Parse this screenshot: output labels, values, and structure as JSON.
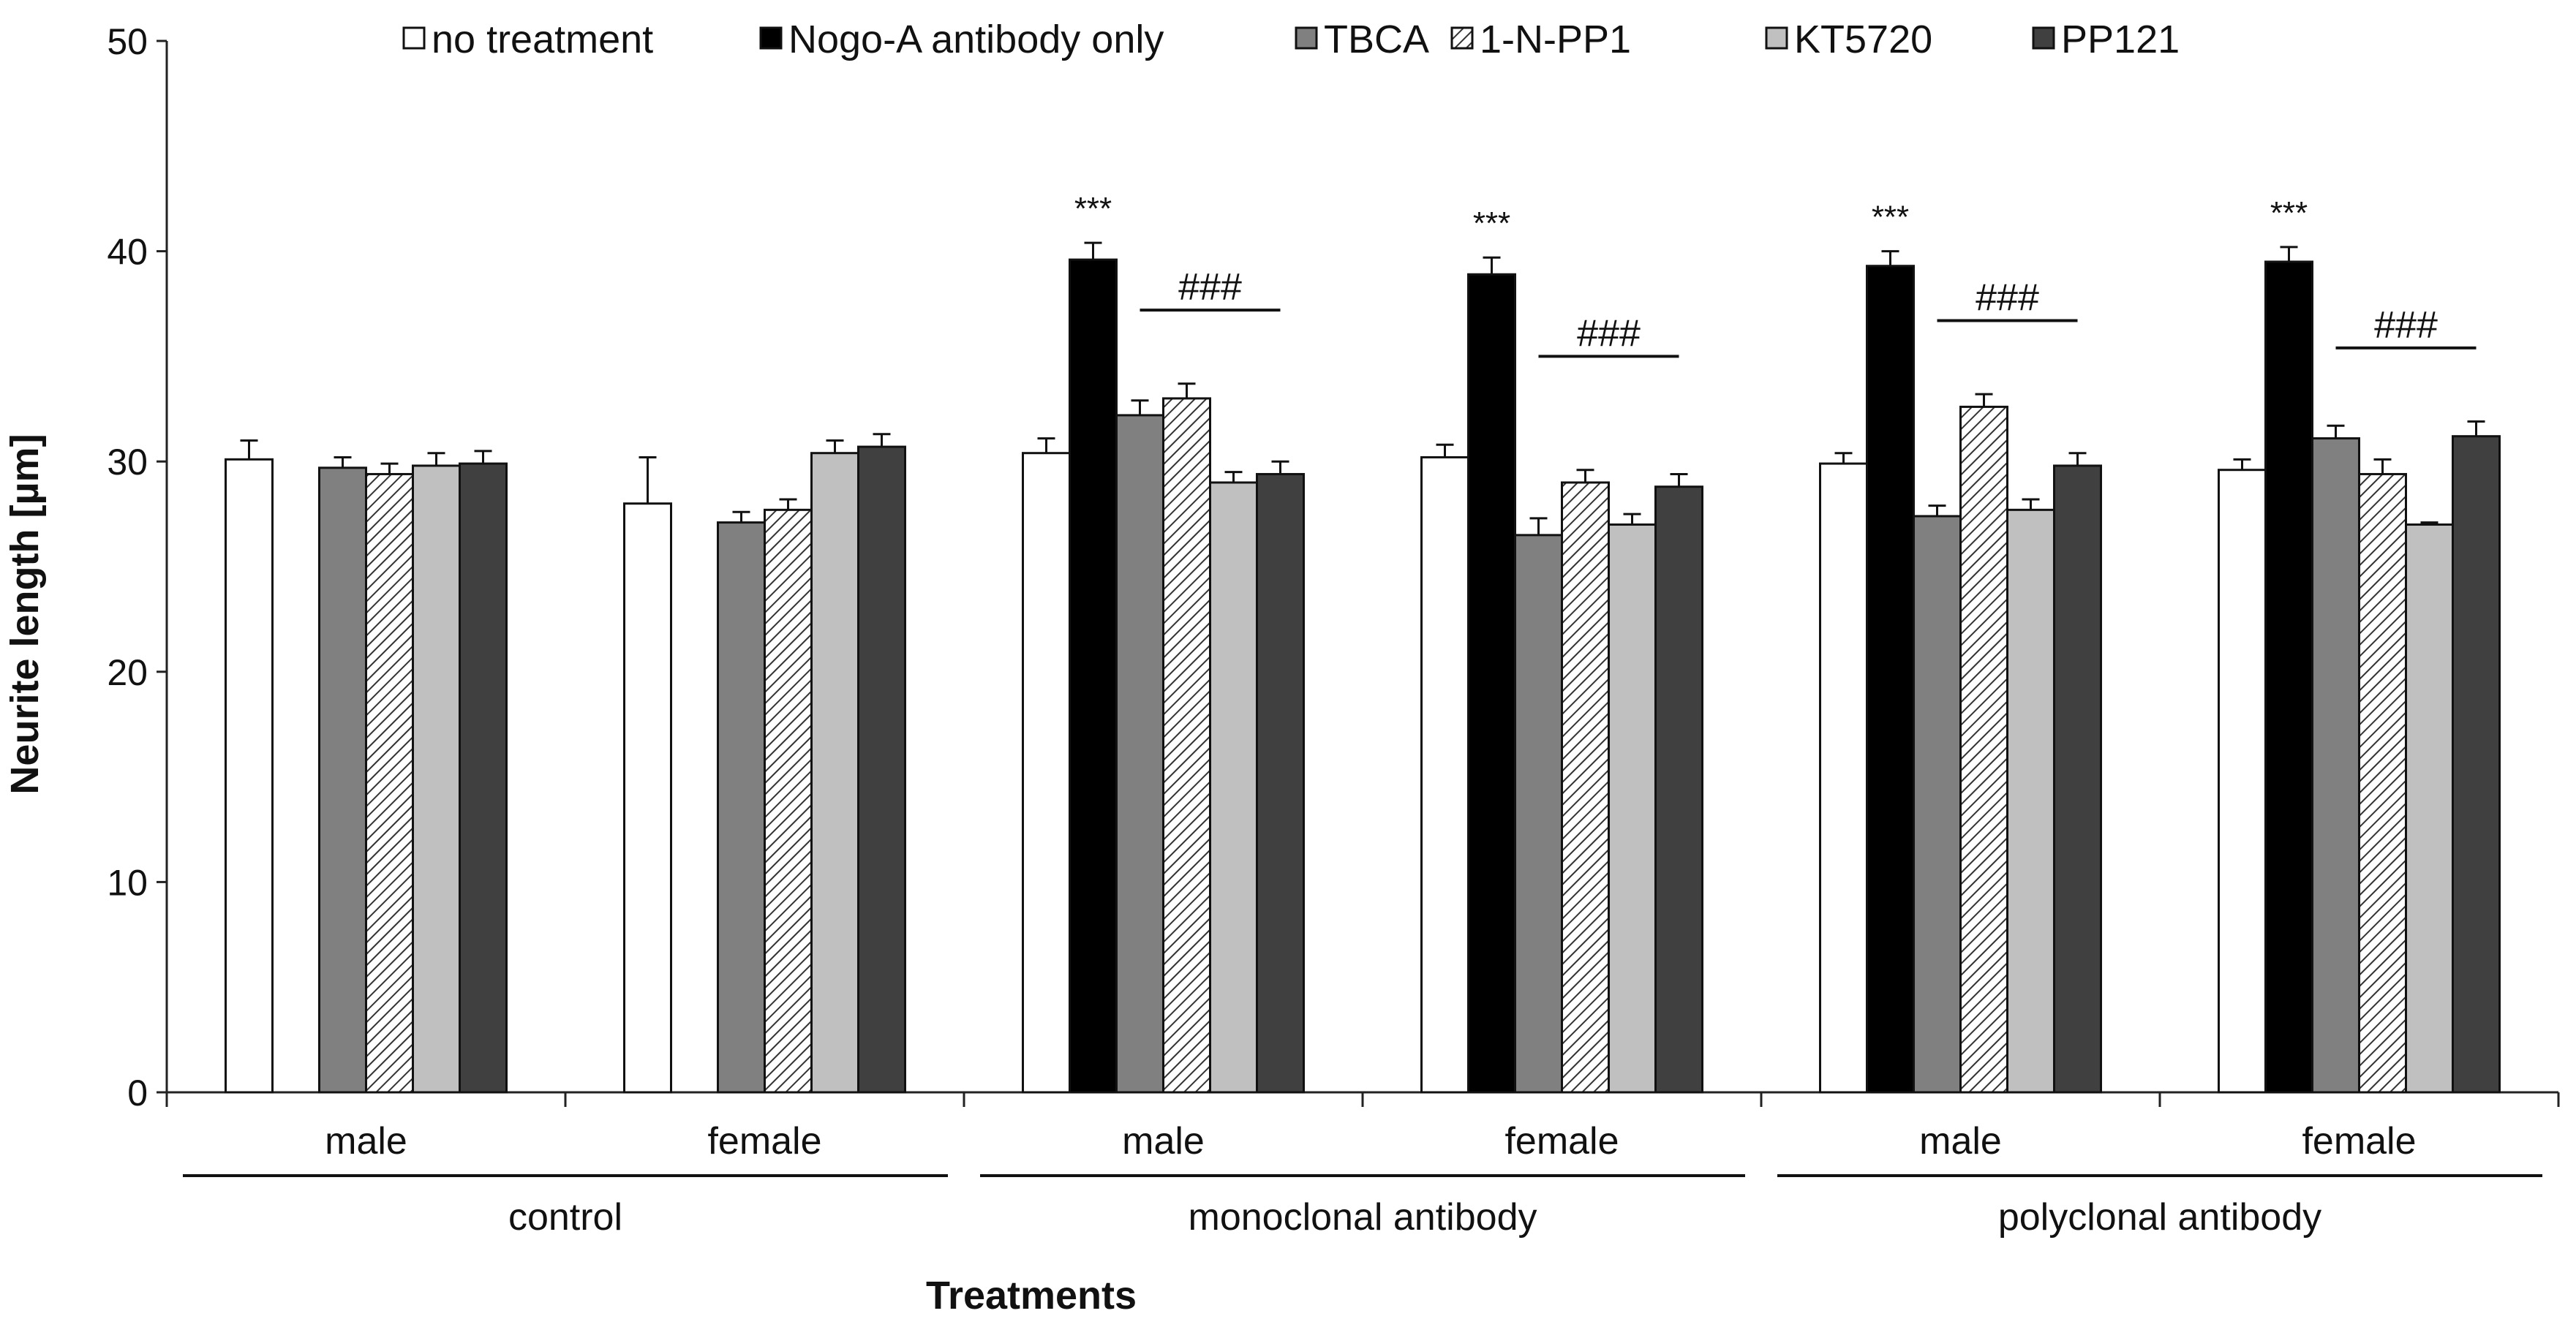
{
  "chart_data": {
    "type": "bar",
    "ylabel": "Neurite length [µm]",
    "xlabel": "Treatments",
    "ylim": [
      0,
      50
    ],
    "yticks": [
      0,
      10,
      20,
      30,
      40,
      50
    ],
    "legend_position": "top",
    "subgroups": [
      "male",
      "female",
      "male",
      "female",
      "male",
      "female"
    ],
    "groups": [
      {
        "label": "control",
        "span": [
          0,
          1
        ]
      },
      {
        "label": "monoclonal antibody",
        "span": [
          2,
          3
        ]
      },
      {
        "label": "polyclonal antibody",
        "span": [
          4,
          5
        ]
      }
    ],
    "series": [
      {
        "name": "no treatment",
        "fill": "#ffffff",
        "pattern": "none",
        "values": [
          30.1,
          28.0,
          30.4,
          30.2,
          29.9,
          29.6
        ],
        "errors": [
          0.9,
          2.2,
          0.7,
          0.6,
          0.5,
          0.5
        ]
      },
      {
        "name": "Nogo-A antibody only",
        "fill": "#000000",
        "pattern": "none",
        "values": [
          null,
          null,
          39.6,
          38.9,
          39.3,
          39.5
        ],
        "errors": [
          null,
          null,
          0.8,
          0.8,
          0.7,
          0.7
        ],
        "annotation": "***"
      },
      {
        "name": "TBCA",
        "fill": "#808080",
        "pattern": "none",
        "values": [
          29.7,
          27.1,
          32.2,
          26.5,
          27.4,
          31.1
        ],
        "errors": [
          0.5,
          0.5,
          0.7,
          0.8,
          0.5,
          0.6
        ]
      },
      {
        "name": "1-N-PP1",
        "fill": "#ffffff",
        "pattern": "hatch",
        "values": [
          29.4,
          27.7,
          33.0,
          29.0,
          32.6,
          29.4
        ],
        "errors": [
          0.5,
          0.5,
          0.7,
          0.6,
          0.6,
          0.7
        ]
      },
      {
        "name": "KT5720",
        "fill": "#c0c0c0",
        "pattern": "none",
        "values": [
          29.8,
          30.4,
          29.0,
          27.0,
          27.7,
          27.0
        ],
        "errors": [
          0.6,
          0.6,
          0.5,
          0.5,
          0.5,
          0.1
        ]
      },
      {
        "name": "PP121",
        "fill": "#404040",
        "pattern": "none",
        "values": [
          29.9,
          30.7,
          29.4,
          28.8,
          29.8,
          31.2
        ],
        "errors": [
          0.6,
          0.6,
          0.6,
          0.6,
          0.6,
          0.7
        ]
      }
    ],
    "brackets": [
      {
        "subgroup": 2,
        "label": "###"
      },
      {
        "subgroup": 3,
        "label": "###"
      },
      {
        "subgroup": 4,
        "label": "###"
      },
      {
        "subgroup": 5,
        "label": "###"
      }
    ]
  }
}
